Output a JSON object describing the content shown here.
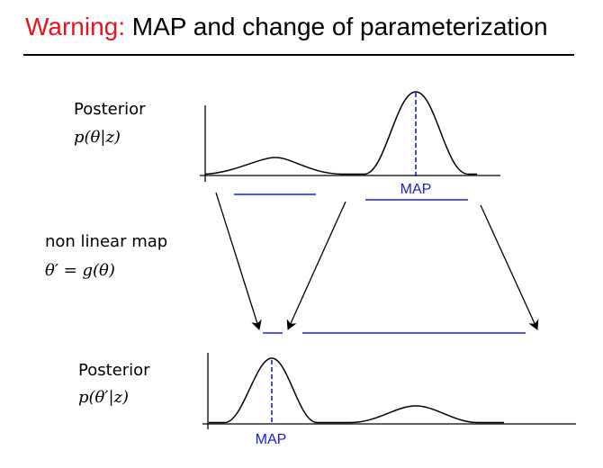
{
  "title": {
    "warning": "Warning:",
    "rest": " MAP and change of parameterization"
  },
  "top_plot": {
    "label": "Posterior",
    "formula": "p(θ|z)",
    "map_label": "MAP"
  },
  "middle": {
    "label": "non linear map",
    "formula": "θ′ = g(θ)"
  },
  "bottom_plot": {
    "label": "Posterior",
    "formula": "p(θ′|z)",
    "map_label": "MAP"
  },
  "colors": {
    "warning": "#e8121b",
    "interval": "#1a1aff",
    "map": "#1a1ad6",
    "curve": "#000000"
  }
}
